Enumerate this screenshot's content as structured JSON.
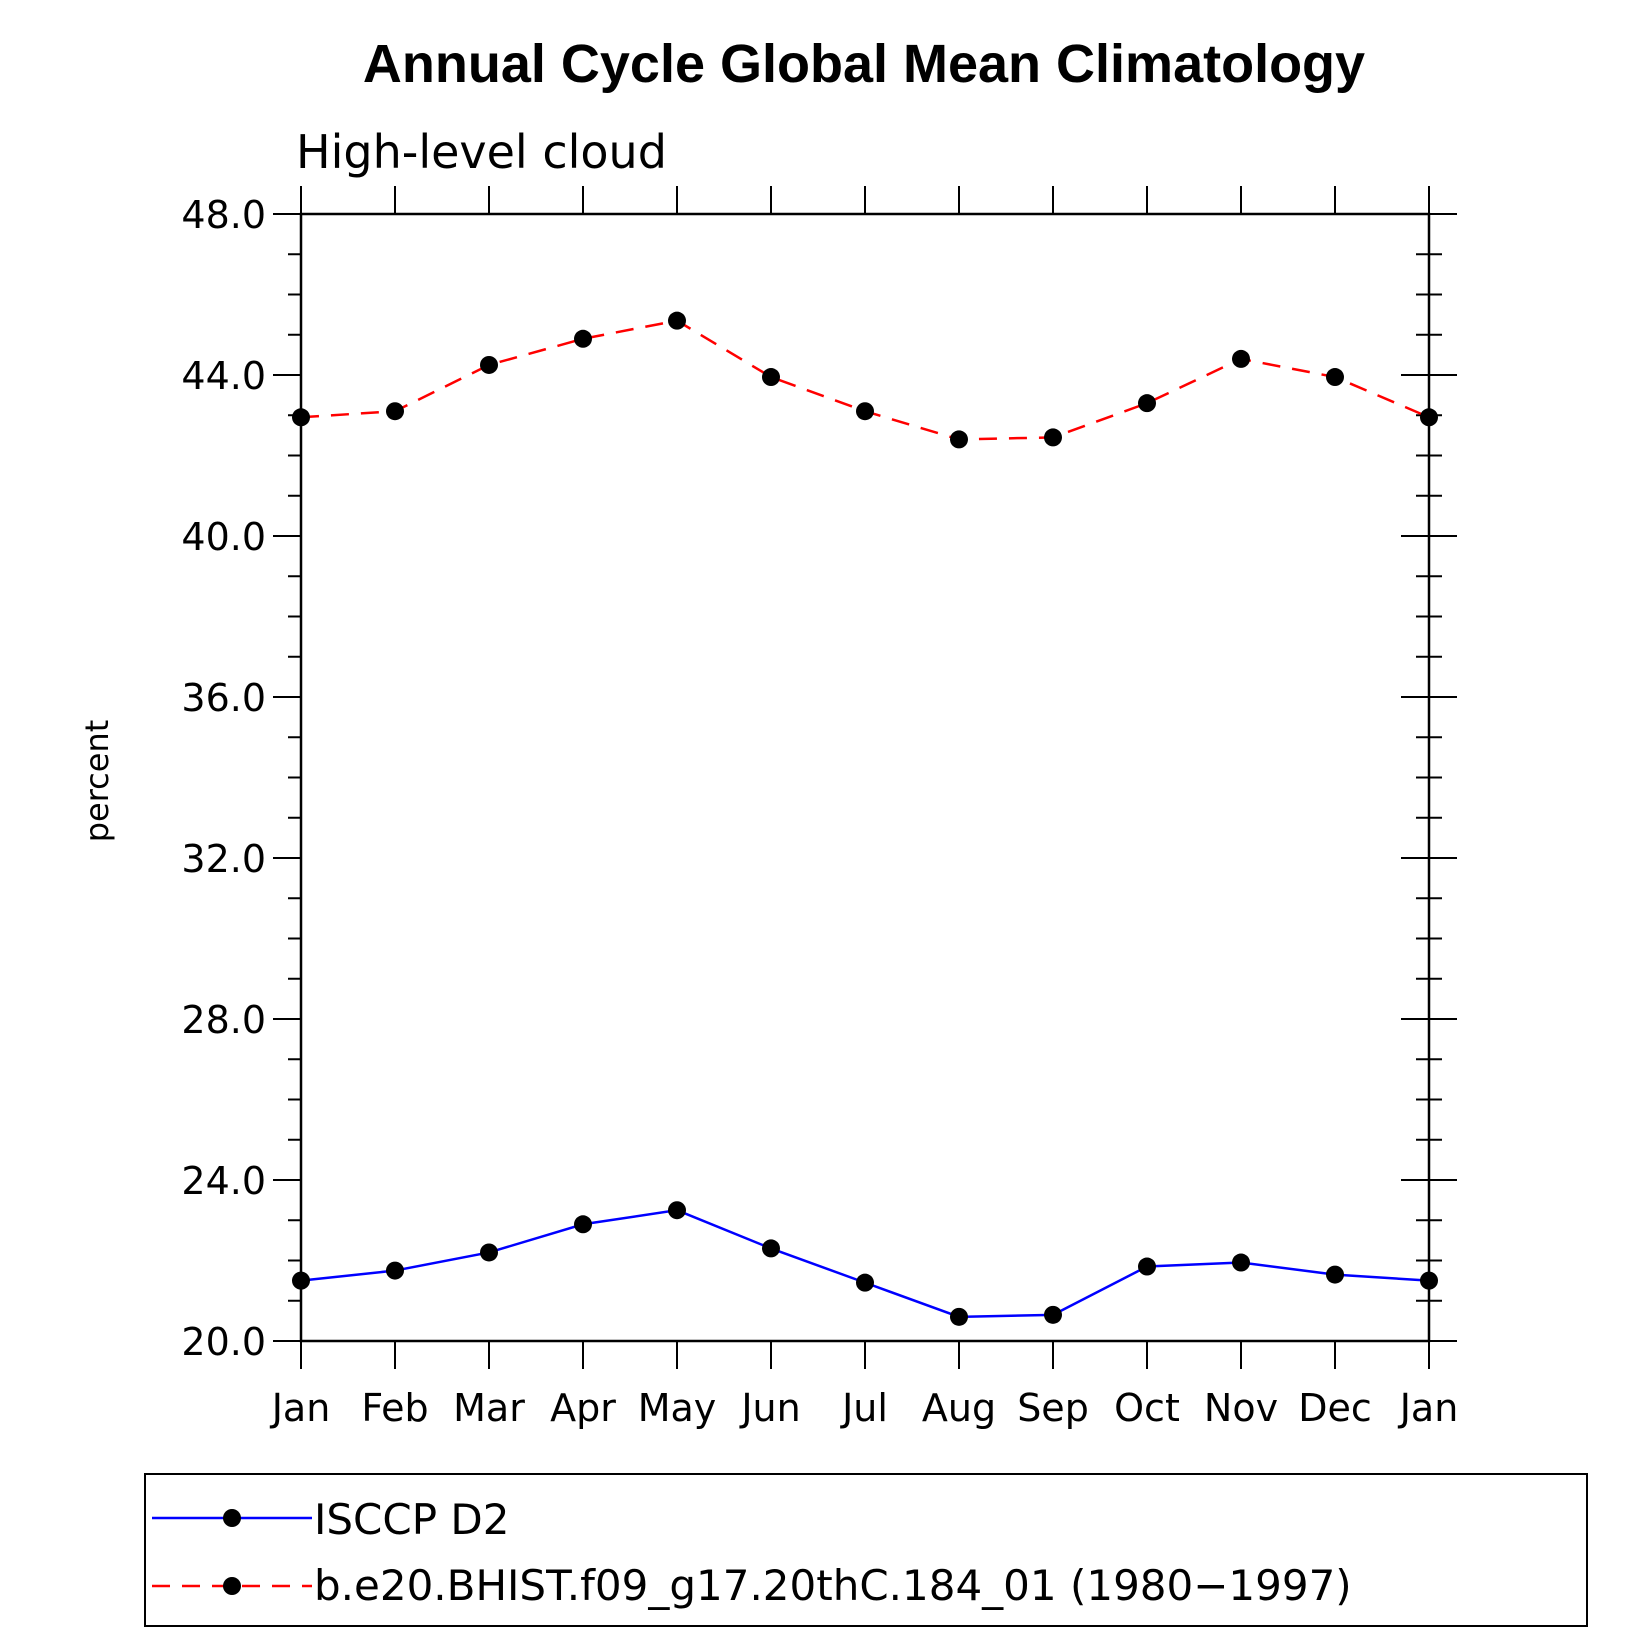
{
  "chart_data": {
    "type": "line",
    "title": "Annual Cycle Global Mean Climatology",
    "subtitle": "High-level cloud",
    "ylabel": "percent",
    "xlabel": "",
    "ylim": [
      20,
      48
    ],
    "yticks": [
      "20.0",
      "24.0",
      "28.0",
      "32.0",
      "36.0",
      "40.0",
      "44.0",
      "48.0"
    ],
    "categories": [
      "Jan",
      "Feb",
      "Mar",
      "Apr",
      "May",
      "Jun",
      "Jul",
      "Aug",
      "Sep",
      "Oct",
      "Nov",
      "Dec",
      "Jan"
    ],
    "series": [
      {
        "name": "ISCCP D2",
        "color": "#0000ff",
        "dash": "solid",
        "values": [
          21.5,
          21.75,
          22.2,
          22.9,
          23.25,
          22.3,
          21.45,
          20.6,
          20.65,
          21.85,
          21.95,
          21.65,
          21.5
        ]
      },
      {
        "name": "b.e20.BHIST.f09_g17.20thC.184_01 (1980−1997)",
        "color": "#ff0000",
        "dash": "dashed",
        "values": [
          42.95,
          43.1,
          44.25,
          44.9,
          45.35,
          43.95,
          43.1,
          42.4,
          42.45,
          43.3,
          44.4,
          43.95,
          42.95
        ]
      }
    ],
    "grid": false,
    "legend_position": "bottom"
  }
}
